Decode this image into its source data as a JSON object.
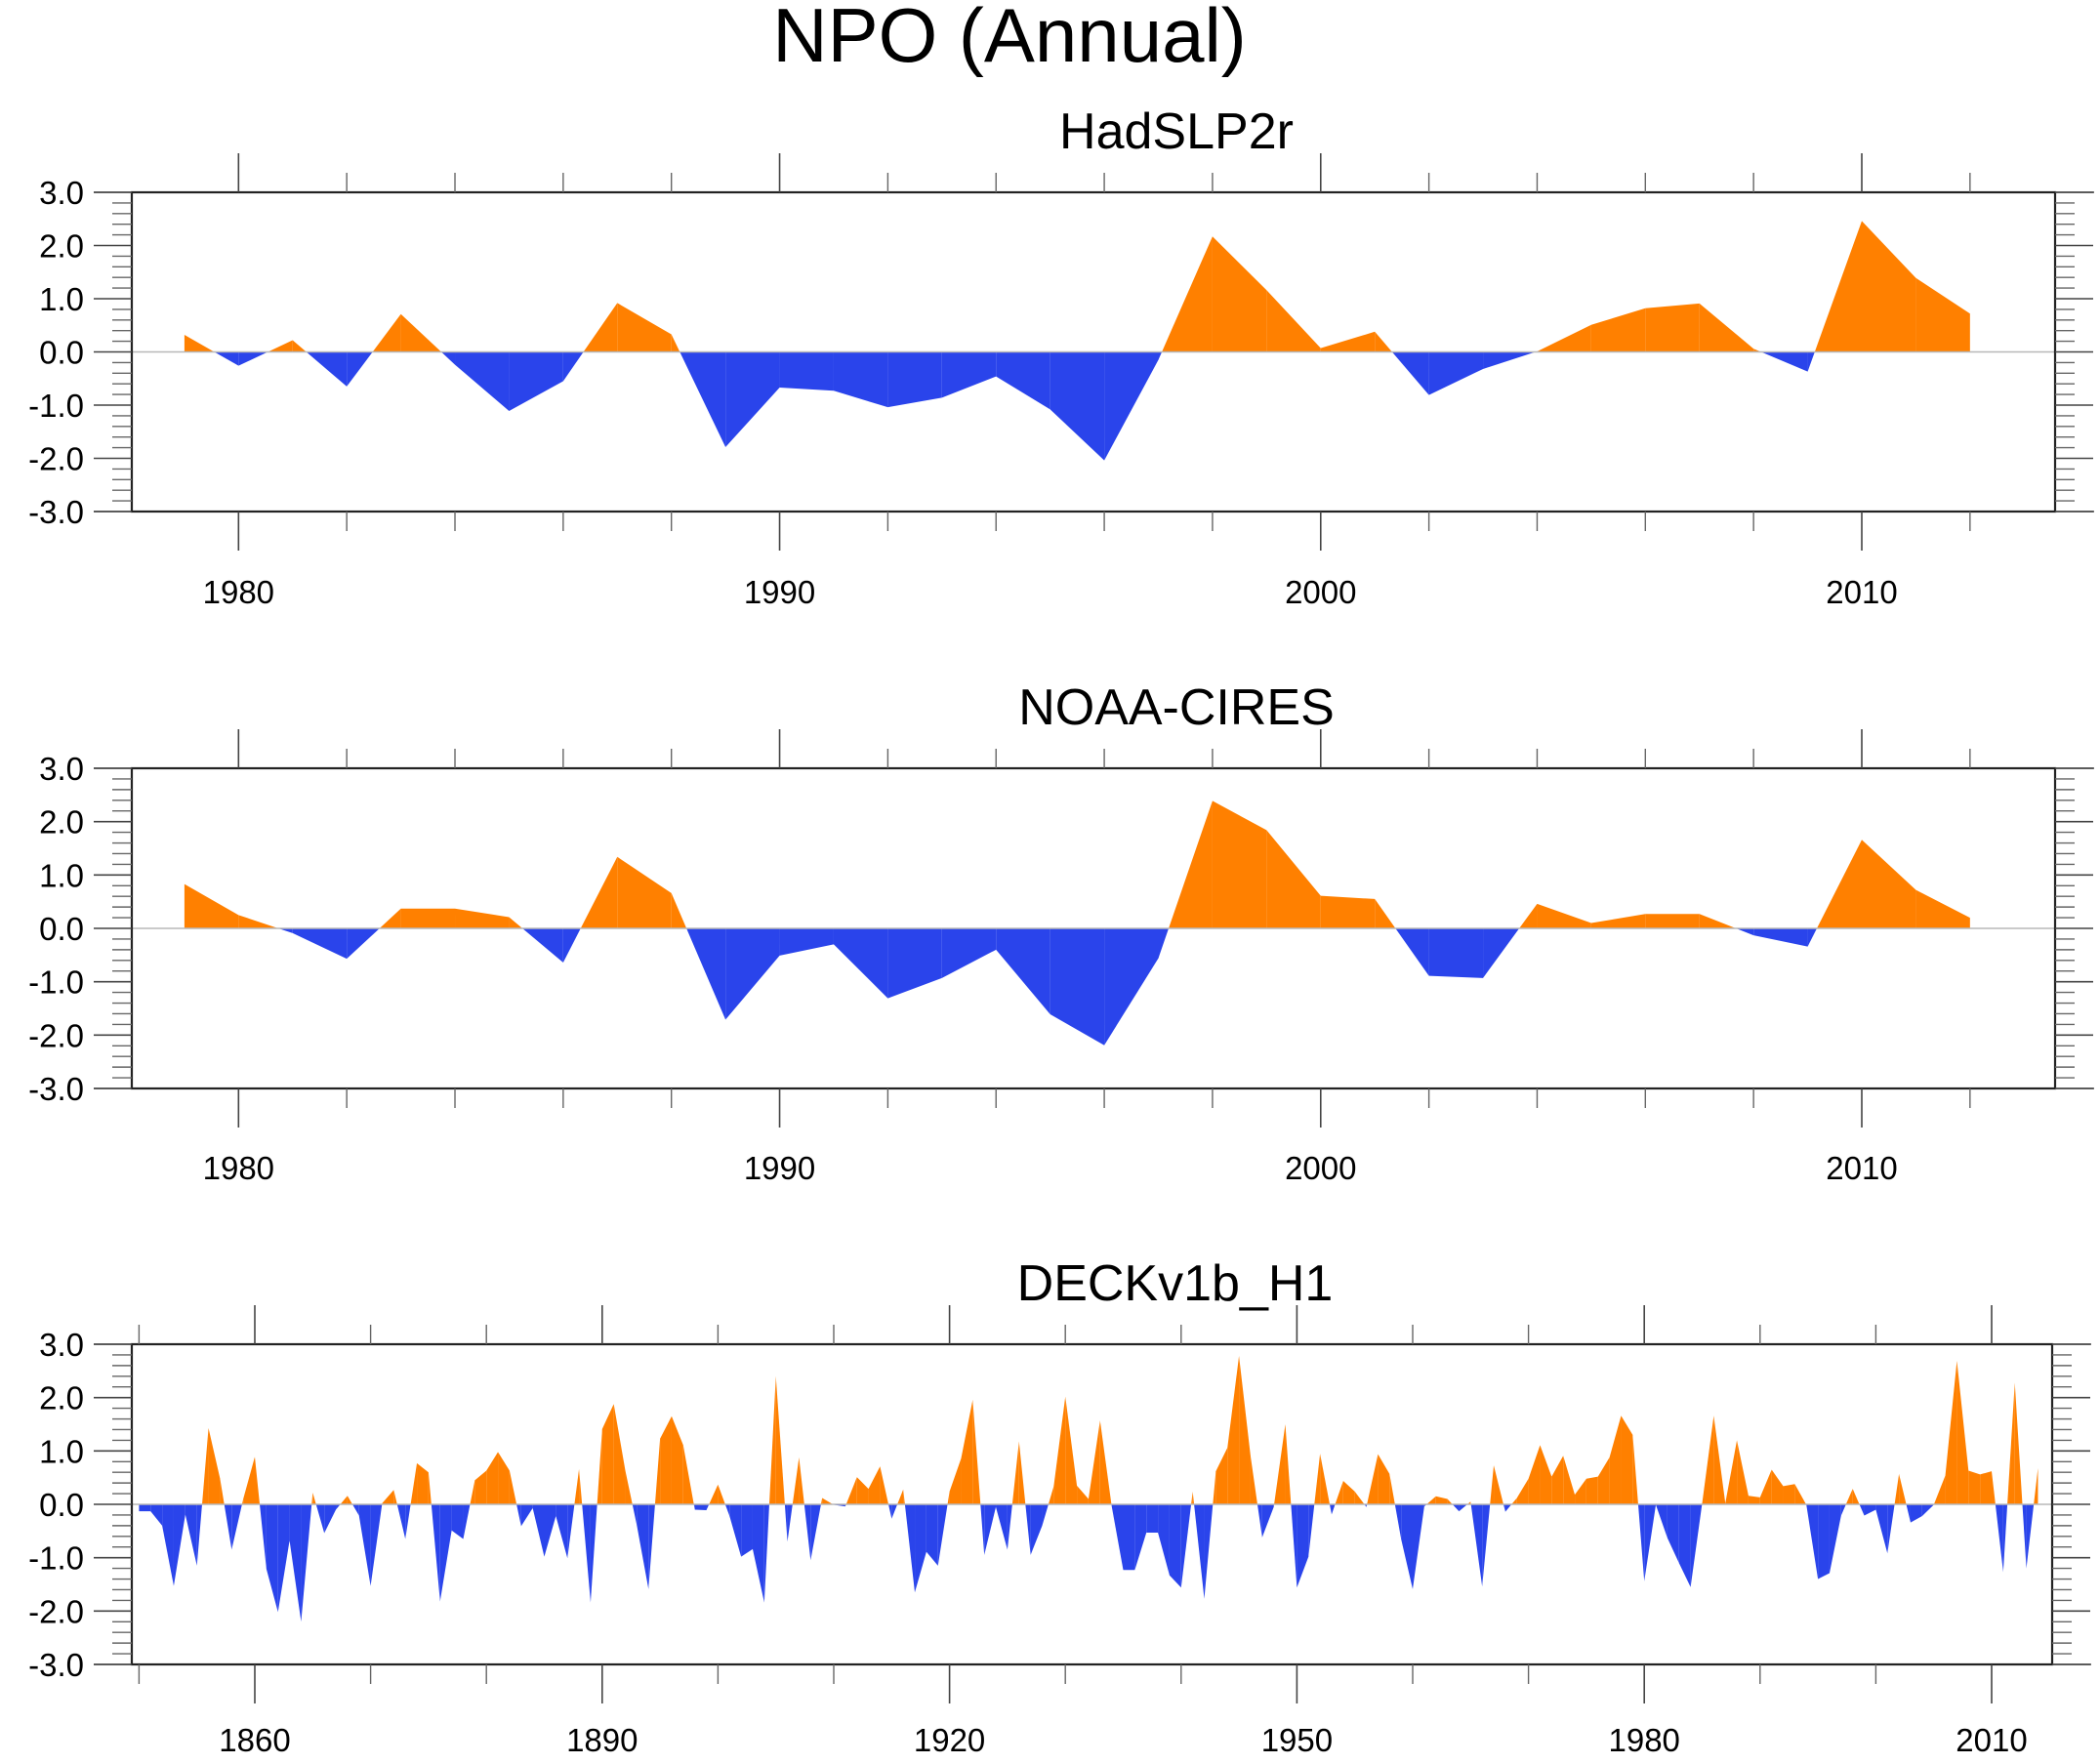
{
  "colors": {
    "positive": "#FF8000",
    "negative": "#2A44EB",
    "zero_line": "#B8B8B8",
    "axis": "#222222"
  },
  "chart_data": [
    {
      "type": "area",
      "figure_title": "NPO (Annual)",
      "title": "HadSLP2r",
      "xlabel": "",
      "ylabel": "",
      "ylim": [
        -3.0,
        3.0
      ],
      "xlim": [
        1978.5,
        2013.6
      ],
      "yticks": [
        "3.0",
        "2.0",
        "1.0",
        "0.0",
        "-1.0",
        "-2.0",
        "-3.0"
      ],
      "xtick_labels": [
        "1980",
        "1990",
        "2000",
        "2010"
      ],
      "xtick_major": [
        1980,
        1990,
        2000,
        2010
      ],
      "xtick_minor_step": 2,
      "grid": false,
      "fill_positive": "orange",
      "fill_negative": "blue",
      "x": [
        1979,
        1980,
        1981,
        1982,
        1983,
        1984,
        1985,
        1986,
        1987,
        1988,
        1989,
        1990,
        1991,
        1992,
        1993,
        1994,
        1995,
        1996,
        1997,
        1998,
        1999,
        2000,
        2001,
        2002,
        2003,
        2004,
        2005,
        2006,
        2007,
        2008,
        2009,
        2010,
        2011,
        2012
      ],
      "values": [
        0.32,
        -0.26,
        0.22,
        -0.65,
        0.71,
        -0.24,
        -1.11,
        -0.55,
        0.92,
        0.33,
        -1.79,
        -0.67,
        -0.73,
        -1.04,
        -0.86,
        -0.46,
        -1.08,
        -2.04,
        -0.15,
        2.17,
        1.16,
        0.07,
        0.38,
        -0.81,
        -0.32,
        0.01,
        0.51,
        0.82,
        0.91,
        0.06,
        -0.37,
        2.46,
        1.39,
        0.72
      ]
    },
    {
      "type": "area",
      "title": "NOAA-CIRES",
      "xlabel": "",
      "ylabel": "",
      "ylim": [
        -3.0,
        3.0
      ],
      "xlim": [
        1978.5,
        2013.6
      ],
      "yticks": [
        "3.0",
        "2.0",
        "1.0",
        "0.0",
        "-1.0",
        "-2.0",
        "-3.0"
      ],
      "xtick_labels": [
        "1980",
        "1990",
        "2000",
        "2010"
      ],
      "xtick_major": [
        1980,
        1990,
        2000,
        2010
      ],
      "xtick_minor_step": 2,
      "grid": false,
      "fill_positive": "orange",
      "fill_negative": "blue",
      "x": [
        1979,
        1980,
        1981,
        1982,
        1983,
        1984,
        1985,
        1986,
        1987,
        1988,
        1989,
        1990,
        1991,
        1992,
        1993,
        1994,
        1995,
        1996,
        1997,
        1998,
        1999,
        2000,
        2001,
        2002,
        2003,
        2004,
        2005,
        2006,
        2007,
        2008,
        2009,
        2010,
        2011,
        2012
      ],
      "values": [
        0.83,
        0.25,
        -0.09,
        -0.57,
        0.37,
        0.37,
        0.21,
        -0.64,
        1.34,
        0.66,
        -1.71,
        -0.51,
        -0.3,
        -1.31,
        -0.93,
        -0.4,
        -1.61,
        -2.19,
        -0.56,
        2.39,
        1.84,
        0.61,
        0.55,
        -0.89,
        -0.93,
        0.46,
        0.1,
        0.27,
        0.27,
        -0.13,
        -0.34,
        1.66,
        0.72,
        0.2
      ]
    },
    {
      "type": "area",
      "title": "DECKv1b_H1",
      "xlabel": "",
      "ylabel": "",
      "ylim": [
        -3.0,
        3.0
      ],
      "xlim": [
        1849.5,
        2019.3
      ],
      "yticks": [
        "3.0",
        "2.0",
        "1.0",
        "0.0",
        "-1.0",
        "-2.0",
        "-3.0"
      ],
      "xtick_labels": [
        "1860",
        "1890",
        "1920",
        "1950",
        "1980",
        "2010"
      ],
      "xtick_major": [
        1860,
        1890,
        1920,
        1950,
        1980,
        2010
      ],
      "xtick_minor_step": 10,
      "grid": false,
      "fill_positive": "orange",
      "fill_negative": "blue",
      "x_start": 1850,
      "x_end": 2014,
      "values": [
        -0.13,
        -0.13,
        -0.4,
        -1.53,
        -0.19,
        -1.15,
        1.43,
        0.48,
        -0.85,
        0.1,
        0.89,
        -1.21,
        -2.02,
        -0.68,
        -2.2,
        0.22,
        -0.54,
        -0.1,
        0.16,
        -0.21,
        -1.53,
        0.02,
        0.27,
        -0.65,
        0.77,
        0.6,
        -1.82,
        -0.49,
        -0.65,
        0.45,
        0.63,
        0.98,
        0.63,
        -0.41,
        -0.07,
        -0.98,
        -0.22,
        -1.01,
        0.66,
        -1.84,
        1.41,
        1.88,
        0.63,
        -0.4,
        -1.59,
        1.23,
        1.65,
        1.11,
        -0.1,
        -0.11,
        0.37,
        -0.22,
        -0.98,
        -0.84,
        -1.84,
        2.4,
        -0.7,
        0.88,
        -1.05,
        0.12,
        -0.01,
        -0.04,
        0.51,
        0.29,
        0.71,
        -0.27,
        0.28,
        -1.65,
        -0.89,
        -1.15,
        0.24,
        0.86,
        1.96,
        -0.95,
        -0.05,
        -0.85,
        1.18,
        -0.95,
        -0.4,
        0.34,
        2.02,
        0.35,
        0.1,
        1.57,
        -0.03,
        -1.23,
        -1.23,
        -0.53,
        -0.53,
        -1.33,
        -1.56,
        0.24,
        -1.77,
        0.62,
        1.06,
        2.78,
        0.9,
        -0.62,
        -0.05,
        1.5,
        -1.56,
        -0.98,
        0.95,
        -0.19,
        0.44,
        0.24,
        -0.05,
        0.94,
        0.57,
        -0.65,
        -1.59,
        -0.04,
        0.15,
        0.1,
        -0.13,
        0.05,
        -1.54,
        0.73,
        -0.14,
        0.12,
        0.48,
        1.11,
        0.52,
        0.91,
        0.18,
        0.48,
        0.52,
        0.88,
        1.66,
        1.3,
        -1.44,
        -0.01,
        -0.63,
        -1.1,
        -1.55,
        0.02,
        1.66,
        0.02,
        1.2,
        0.16,
        0.13,
        0.65,
        0.34,
        0.38,
        -0.01,
        -1.4,
        -1.29,
        -0.21,
        0.29,
        -0.21,
        -0.1,
        -0.92,
        0.57,
        -0.34,
        -0.22,
        -0.01,
        0.54,
        2.69,
        0.63,
        0.56,
        0.62,
        -1.27,
        2.28,
        -1.2,
        0.68
      ]
    }
  ]
}
